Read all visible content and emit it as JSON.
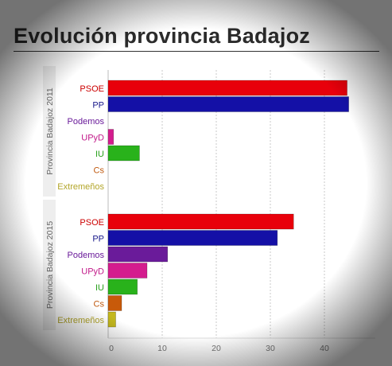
{
  "title": "Evolución provincia Badajoz",
  "colors": {
    "PSOE": "#e8000b",
    "PP": "#1410a6",
    "Podemos": "#6a1b9a",
    "UPyD": "#d41c8e",
    "IU": "#29b21b",
    "Cs": "#c85a0a",
    "Extremeños": "#c4b81e"
  },
  "label_colors": {
    "PSOE": "#cc0000",
    "PP": "#1a1a8c",
    "Podemos": "#6a1b9a",
    "UPyD": "#c21a8a",
    "IU": "#27a01a",
    "Cs": "#c05a10",
    "Extremeños": "#b3a62a"
  },
  "chart_data": {
    "type": "bar",
    "orientation": "horizontal",
    "groups": [
      {
        "name": "Provincia Badajoz 2011",
        "categories": [
          "PSOE",
          "PP",
          "Podemos",
          "UPyD",
          "IU",
          "Cs",
          "Extremeños"
        ],
        "values": [
          44.2,
          44.5,
          0,
          1.0,
          5.8,
          0,
          0
        ]
      },
      {
        "name": "Provincia Badajoz 2015",
        "categories": [
          "PSOE",
          "PP",
          "Podemos",
          "UPyD",
          "IU",
          "Cs",
          "Extremeños"
        ],
        "values": [
          34.3,
          31.3,
          11.0,
          7.2,
          5.4,
          2.5,
          1.4
        ]
      }
    ],
    "xticks": [
      0,
      10,
      20,
      30,
      40
    ],
    "xlim": [
      0,
      48
    ],
    "grid": "vertical dashed",
    "legend": "none"
  }
}
